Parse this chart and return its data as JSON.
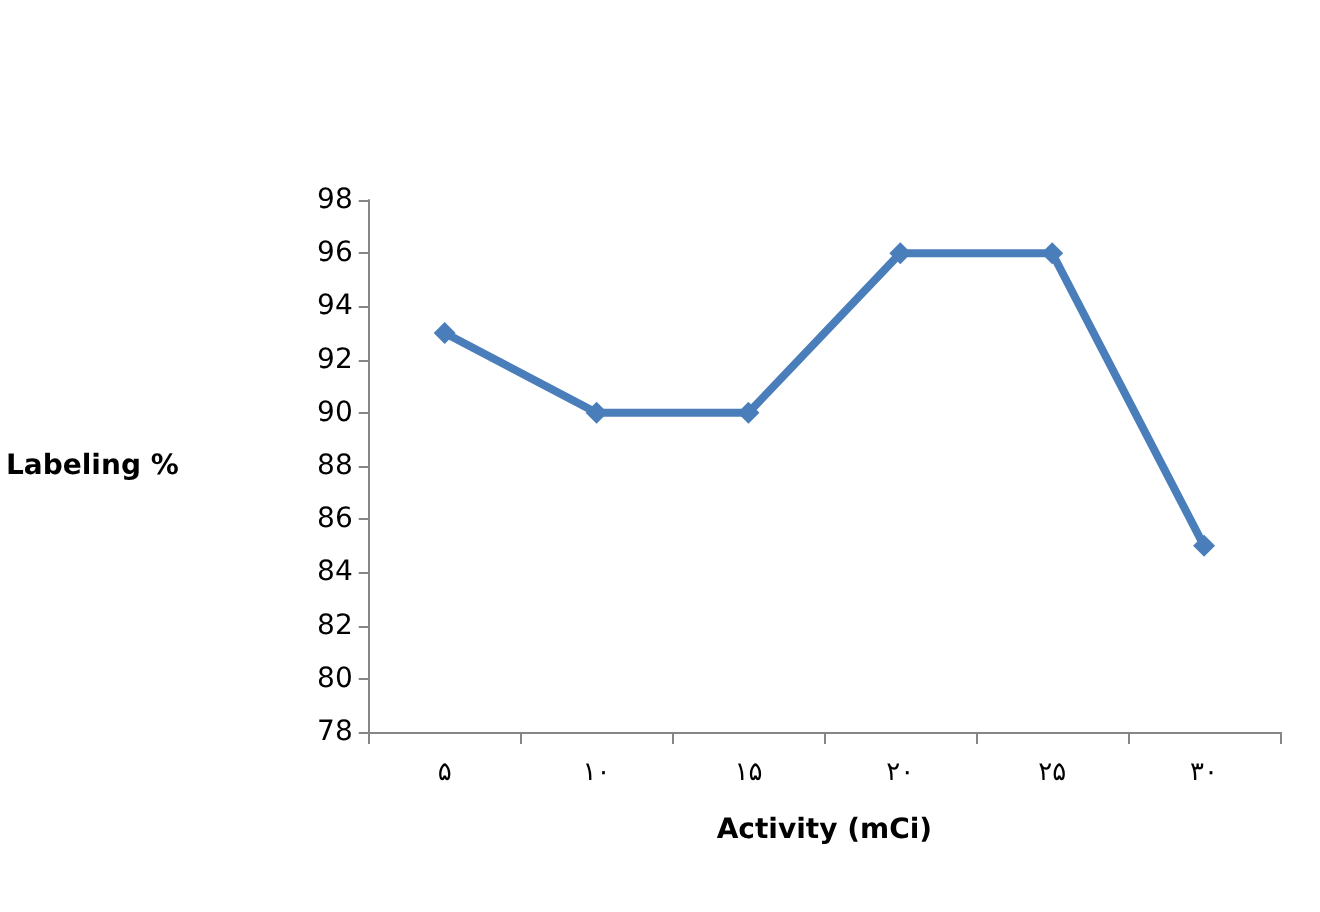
{
  "chart_data": {
    "type": "line",
    "xlabel": "Activity (mCi)",
    "ylabel": "Labeling %",
    "categories": [
      "۵",
      "۱۰",
      "۱۵",
      "۲۰",
      "۲۵",
      "۳۰"
    ],
    "series": [
      {
        "color": "#4a7ebb",
        "values": [
          93,
          90,
          90,
          96,
          96,
          85
        ]
      }
    ],
    "ylim": [
      78,
      98
    ],
    "yticks": [
      78,
      80,
      82,
      84,
      86,
      88,
      90,
      92,
      94,
      96,
      98
    ],
    "grid": false,
    "marker": "diamond",
    "line_style": "solid"
  }
}
